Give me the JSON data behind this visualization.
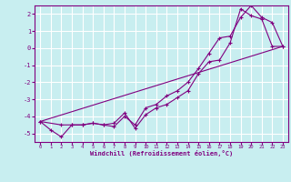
{
  "xlabel": "Windchill (Refroidissement éolien,°C)",
  "background_color": "#c8eef0",
  "grid_color": "#ffffff",
  "line_color": "#800080",
  "xlim": [
    -0.5,
    23.5
  ],
  "ylim": [
    -5.5,
    2.5
  ],
  "yticks": [
    -5,
    -4,
    -3,
    -2,
    -1,
    0,
    1,
    2
  ],
  "xticks": [
    0,
    1,
    2,
    3,
    4,
    5,
    6,
    7,
    8,
    9,
    10,
    11,
    12,
    13,
    14,
    15,
    16,
    17,
    18,
    19,
    20,
    21,
    22,
    23
  ],
  "line1_x": [
    0,
    1,
    2,
    3,
    4,
    5,
    6,
    7,
    8,
    9,
    10,
    11,
    12,
    13,
    14,
    15,
    16,
    17,
    18,
    19,
    20,
    21,
    22,
    23
  ],
  "line1_y": [
    -4.3,
    -4.8,
    -5.2,
    -4.5,
    -4.5,
    -4.4,
    -4.5,
    -4.4,
    -3.8,
    -4.7,
    -3.9,
    -3.5,
    -3.3,
    -2.9,
    -2.5,
    -1.5,
    -0.8,
    -0.7,
    0.3,
    2.3,
    1.9,
    1.7,
    0.1,
    0.1
  ],
  "line2_x": [
    0,
    2,
    3,
    4,
    5,
    6,
    7,
    8,
    9,
    10,
    11,
    12,
    13,
    14,
    15,
    16,
    17,
    18,
    19,
    20,
    21,
    22,
    23
  ],
  "line2_y": [
    -4.3,
    -4.5,
    -4.5,
    -4.5,
    -4.4,
    -4.5,
    -4.6,
    -4.0,
    -4.5,
    -3.5,
    -3.3,
    -2.8,
    -2.5,
    -2.0,
    -1.2,
    -0.3,
    0.6,
    0.7,
    1.8,
    2.5,
    1.8,
    1.5,
    0.1
  ],
  "line3_x": [
    0,
    23
  ],
  "line3_y": [
    -4.3,
    0.1
  ]
}
